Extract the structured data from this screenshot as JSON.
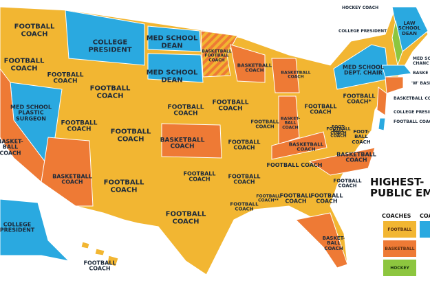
{
  "colors": {
    "football": "#f2b632",
    "basketball": "#ee7a35",
    "medical_academic": "#2aa9e0",
    "hockey": "#8dc63f",
    "background": "#ffffff",
    "border": "#ffffff"
  },
  "title": {
    "line1": "HIGHEST-",
    "line2": "PUBLIC EMP"
  },
  "legend": {
    "coaches_heading": "COACHES",
    "other_heading": "COA",
    "items": [
      {
        "label": "FOOTBALL",
        "category": "football"
      },
      {
        "label": "BASKETBALL",
        "category": "basketball"
      },
      {
        "label": "HOCKEY",
        "category": "hockey"
      }
    ]
  },
  "state_labels": [
    {
      "text": "FOOTBALL\nCOACH",
      "category": "football"
    },
    {
      "text": "COLLEGE\nPRESIDENT",
      "category": "medical_academic"
    },
    {
      "text": "MED SCHOOL\nDEAN",
      "category": "medical_academic"
    },
    {
      "text": "BASKETBALL\nFOOTBALL\nCOACH",
      "category": "football/basketball"
    },
    {
      "text": "FOOTBALL\nCOACH",
      "category": "football"
    },
    {
      "text": "FOOTBALL\nCOACH",
      "category": "football"
    },
    {
      "text": "MED SCHOOL\nDEAN",
      "category": "medical_academic"
    },
    {
      "text": "BASKETBALL\nCOACH",
      "category": "basketball"
    },
    {
      "text": "BASKETBALL\nCOACH",
      "category": "basketball"
    },
    {
      "text": "FOOTBALL\nCOACH",
      "category": "football"
    },
    {
      "text": "MED SCHOOL\nPLASTIC\nSURGEON",
      "category": "medical_academic"
    },
    {
      "text": "FOOTBALL\nCOACH",
      "category": "football"
    },
    {
      "text": "FOOTBALL\nCOACH",
      "category": "football"
    },
    {
      "text": "FOOTBALL\nCOACH",
      "category": "football"
    },
    {
      "text": "FOOTBALL\nCOACH",
      "category": "football"
    },
    {
      "text": "BASKET-\nBALL\nCOACH",
      "category": "basketball"
    },
    {
      "text": "BASKETBALL\nCOACH",
      "category": "basketball"
    },
    {
      "text": "FOOTBALL\nCOACH",
      "category": "football"
    },
    {
      "text": "BASKETBALL\nCOACH",
      "category": "basketball"
    },
    {
      "text": "FOOTBALL\nCOACH",
      "category": "football"
    },
    {
      "text": "FOOTBALL\nCOACH",
      "category": "football"
    },
    {
      "text": "FOOTBALL\nCOACH",
      "category": "football"
    },
    {
      "text": "FOOTBALL\nCOACH",
      "category": "football"
    },
    {
      "text": "FOOTBALL\nCOACH",
      "category": "football"
    },
    {
      "text": "BASKET-\nBALL\nCOACH",
      "category": "basketball"
    },
    {
      "text": "FOOTBALL\nCOACH",
      "category": "football"
    },
    {
      "text": "FOOTBALL\nCOACH*",
      "category": "football"
    },
    {
      "text": "MED SCHOOL\nDEPT. CHAIR",
      "category": "medical_academic"
    },
    {
      "text": "LAW\nSCHOOL\nDEAN",
      "category": "medical_academic"
    },
    {
      "text": "FOOT-\nBALL\nCOACH",
      "category": "football"
    },
    {
      "text": "FOOT-\nBALL\nCOACH",
      "category": "football"
    },
    {
      "text": "BASKETBALL\nCOACH",
      "category": "basketball"
    },
    {
      "text": "FOOTBALL COACH",
      "category": "football"
    },
    {
      "text": "BASKETBALL\nCOACH",
      "category": "basketball"
    },
    {
      "text": "FOOTBALL\nCOACH",
      "category": "football"
    },
    {
      "text": "FOOTBALL\nCOACH",
      "category": "football"
    },
    {
      "text": "FOOTBALL\nCOACH",
      "category": "football"
    },
    {
      "text": "FOOTBALL\nCOACH**",
      "category": "football"
    },
    {
      "text": "FOOTBALL\nCOACH",
      "category": "football"
    },
    {
      "text": "FOOTBALL\nCOACH",
      "category": "football"
    },
    {
      "text": "FOOTBALL\nCOACH",
      "category": "football"
    },
    {
      "text": "BASKET-\nBALL\nCOACH",
      "category": "basketball"
    },
    {
      "text": "COLLEGE\nPRESIDENT",
      "category": "medical_academic"
    },
    {
      "text": "FOOTBALL\nCOACH",
      "category": "football"
    }
  ],
  "callouts": [
    {
      "text": "HOCKEY COACH"
    },
    {
      "text": "COLLEGE PRESIDENT"
    },
    {
      "text": "MED SCHOOL\nCHANC"
    },
    {
      "text": "BASKE"
    },
    {
      "text": "'W' BASK"
    },
    {
      "text": "BASKETBALL COA"
    },
    {
      "text": "COLLEGE PRESID"
    },
    {
      "text": "FOOTBALL COACH"
    }
  ]
}
